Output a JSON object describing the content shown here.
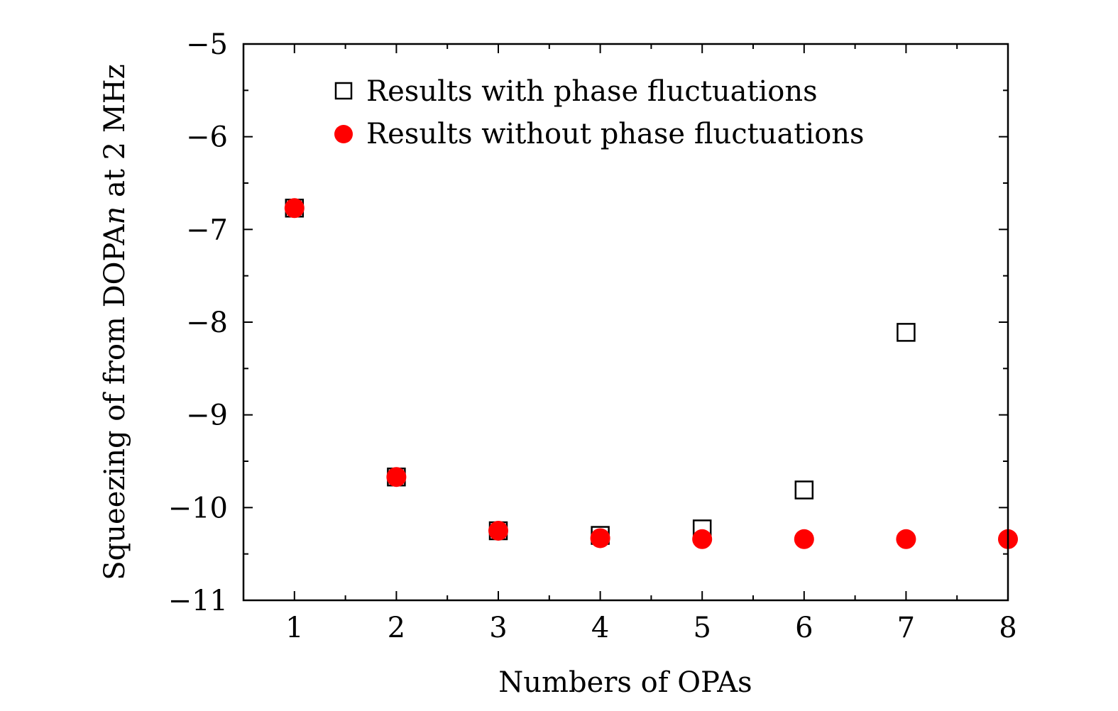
{
  "chart_data": {
    "type": "scatter",
    "title": "",
    "xlabel": "Numbers of OPAs",
    "ylabel_parts": [
      "Squeezing of from DOPA",
      "n",
      " at 2 MHz"
    ],
    "xlim": [
      0.5,
      8
    ],
    "ylim": [
      -11,
      -5
    ],
    "xticks": [
      1,
      2,
      3,
      4,
      5,
      6,
      7,
      8
    ],
    "xtick_labels": [
      "1",
      "2",
      "3",
      "4",
      "5",
      "6",
      "7",
      "8"
    ],
    "yticks": [
      -11,
      -10,
      -9,
      -8,
      -7,
      -6,
      -5
    ],
    "ytick_labels": [
      "−11",
      "−10",
      "−9",
      "−8",
      "−7",
      "−6",
      "−5"
    ],
    "grid": false,
    "legend_position": "top",
    "series": [
      {
        "name": "Results with phase fluctuations",
        "marker": "open-square",
        "color": "#000000",
        "x": [
          1,
          2,
          3,
          4,
          5,
          6,
          7
        ],
        "y": [
          -6.77,
          -9.67,
          -10.25,
          -10.3,
          -10.23,
          -9.81,
          -8.11
        ]
      },
      {
        "name": "Results without phase fluctuations",
        "marker": "filled-circle",
        "color": "#ff0000",
        "x": [
          1,
          2,
          3,
          4,
          5,
          6,
          7,
          8
        ],
        "y": [
          -6.77,
          -9.67,
          -10.25,
          -10.33,
          -10.34,
          -10.34,
          -10.34,
          -10.34
        ]
      }
    ]
  }
}
